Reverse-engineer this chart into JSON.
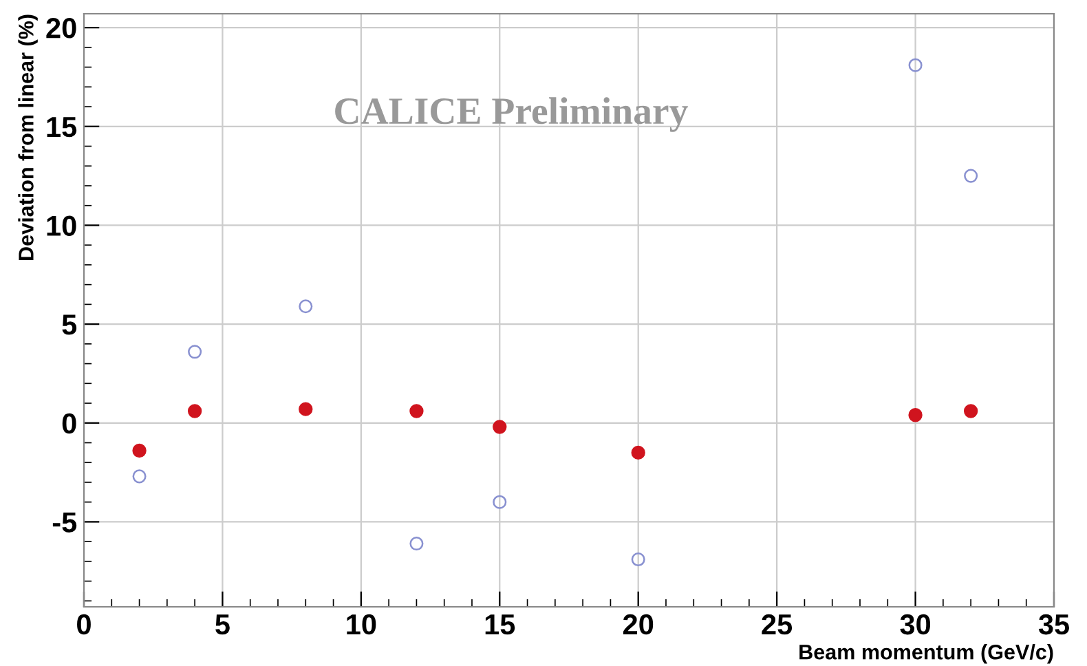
{
  "chart_data": {
    "type": "scatter",
    "xlabel": "Beam momentum (GeV/c)",
    "ylabel": "Deviation from linear (%)",
    "annotations": [
      "CALICE Preliminary"
    ],
    "xlim": [
      0,
      35
    ],
    "xticks": [
      0,
      5,
      10,
      15,
      20,
      25,
      30,
      35
    ],
    "ylim": [
      -9.3,
      20.7
    ],
    "yticks": [
      -5,
      0,
      5,
      10,
      15,
      20
    ],
    "grid": true,
    "marker": "circle",
    "series": [
      {
        "color": "#8890d0",
        "x": [
          2,
          4,
          8,
          12,
          15,
          20,
          30,
          32
        ],
        "values": [
          -2.7,
          3.6,
          5.9,
          -6.1,
          -4.0,
          -6.9,
          18.1,
          12.5
        ]
      },
      {
        "color": "#d0141e",
        "x": [
          2,
          4,
          8,
          12,
          15,
          20,
          30,
          32
        ],
        "values": [
          -1.4,
          0.6,
          0.7,
          0.6,
          -0.2,
          -1.5,
          0.4,
          0.6
        ]
      }
    ]
  }
}
